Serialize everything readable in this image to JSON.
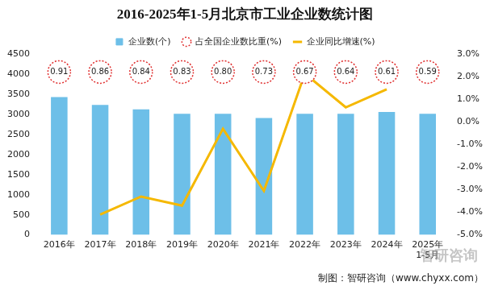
{
  "chart_data": {
    "type": "bar",
    "title": "2016-2025年1-5月北京市工业企业数统计图",
    "categories": [
      "2016年",
      "2017年",
      "2018年",
      "2019年",
      "2020年",
      "2021年",
      "2022年",
      "2023年",
      "2024年",
      [
        "2025年",
        "1-5月"
      ]
    ],
    "series": [
      {
        "name": "企业数(个)",
        "type": "bar",
        "color": "#6dbfe8",
        "values": [
          3435,
          3240,
          3130,
          3020,
          3020,
          2910,
          3020,
          3020,
          3065,
          3020
        ]
      },
      {
        "name": "占全国企业数比重(%)",
        "type": "label",
        "marker": "circle",
        "line_style": "dotted",
        "color": "#e03030",
        "data_labels": true,
        "values": [
          0.91,
          0.86,
          0.84,
          0.83,
          0.8,
          0.73,
          0.67,
          0.64,
          0.61,
          0.59
        ],
        "value_labels": [
          "0.91",
          "0.86",
          "0.84",
          "0.83",
          "0.80",
          "0.73",
          "0.67",
          "0.64",
          "0.61",
          "0.59"
        ]
      },
      {
        "name": "企业同比增速(%)",
        "type": "line",
        "axis": "y2",
        "color": "#f5b800",
        "marker": "none",
        "values": [
          null,
          -4.1,
          -3.3,
          -3.7,
          -0.3,
          -3.05,
          2.15,
          0.65,
          1.45,
          null
        ]
      }
    ],
    "ylim": [
      0,
      4500
    ],
    "yticks": [
      0,
      500,
      1000,
      1500,
      2000,
      2500,
      3000,
      3500,
      4000,
      4500
    ],
    "y2lim": [
      -5,
      3
    ],
    "y2ticks": [
      {
        "value": -5,
        "label": "-5.0%"
      },
      {
        "value": -4,
        "label": "-4.0%"
      },
      {
        "value": -3,
        "label": "-3.0%"
      },
      {
        "value": -2,
        "label": "-2.0%"
      },
      {
        "value": -1,
        "label": "-1.0%"
      },
      {
        "value": 0,
        "label": "0.0%"
      },
      {
        "value": 1,
        "label": "1.0%"
      },
      {
        "value": 2,
        "label": "2.0%"
      },
      {
        "value": 3,
        "label": "3.0%"
      }
    ],
    "grid": false,
    "legend": "top",
    "annotations": [
      "制图：智研咨询（www.chyxx.com）",
      "智研咨询"
    ]
  }
}
